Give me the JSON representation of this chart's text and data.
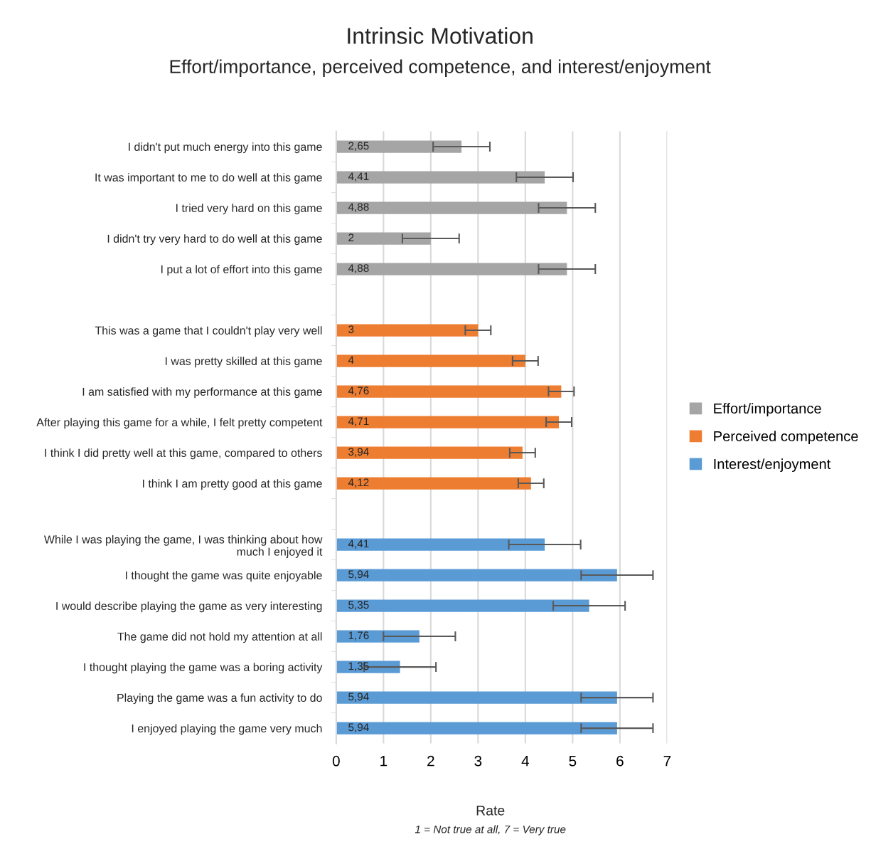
{
  "chart_data": {
    "type": "bar",
    "orientation": "horizontal",
    "title": "Intrinsic Motivation",
    "subtitle": "Effort/importance, perceived competence, and interest/enjoyment",
    "xlabel": "Rate",
    "annotations": [
      "1 = Not true at all, 7 = Very true"
    ],
    "categories": [
      "I didn't put much energy into this game",
      "It was important to me to do well at this game",
      "I tried very hard on this game",
      "I didn't try very hard to do well at this game",
      "I put a lot of effort into this game",
      null,
      "This was a game that I couldn't play very well",
      "I was pretty skilled at this game",
      "I am satisfied with my performance at this game",
      "After playing this game for a while, I felt pretty competent",
      "I think I did pretty well at this game, compared to others",
      "I think I am pretty good at this game",
      null,
      "While I was playing the game, I was thinking about how\nmuch I enjoyed it",
      "I thought the game was quite enjoyable",
      "I would describe playing the game as very interesting",
      "The game did not hold my attention at all",
      "I thought playing the game was a boring activity",
      "Playing the game was a fun activity to do",
      "I enjoyed playing the game very much"
    ],
    "series": [
      {
        "name": "Effort/importance",
        "color": "#a5a5a5",
        "values": [
          2.65,
          4.41,
          4.88,
          2,
          4.88,
          null,
          null,
          null,
          null,
          null,
          null,
          null,
          null,
          null,
          null,
          null,
          null,
          null,
          null,
          null
        ],
        "errors": [
          0.6,
          0.6,
          0.6,
          0.6,
          0.6,
          null,
          null,
          null,
          null,
          null,
          null,
          null,
          null,
          null,
          null,
          null,
          null,
          null,
          null,
          null
        ],
        "value_labels": [
          "2,65",
          "4,41",
          "4,88",
          "2",
          "4,88",
          null,
          null,
          null,
          null,
          null,
          null,
          null,
          null,
          null,
          null,
          null,
          null,
          null,
          null,
          null
        ]
      },
      {
        "name": "Perceived competence",
        "color": "#ed7d31",
        "values": [
          null,
          null,
          null,
          null,
          null,
          null,
          3,
          4,
          4.76,
          4.71,
          3.94,
          4.12,
          null,
          null,
          null,
          null,
          null,
          null,
          null,
          null
        ],
        "errors": [
          null,
          null,
          null,
          null,
          null,
          null,
          0.27,
          0.27,
          0.27,
          0.27,
          0.27,
          0.27,
          null,
          null,
          null,
          null,
          null,
          null,
          null,
          null
        ],
        "value_labels": [
          null,
          null,
          null,
          null,
          null,
          null,
          "3",
          "4",
          "4,76",
          "4,71",
          "3,94",
          "4,12",
          null,
          null,
          null,
          null,
          null,
          null,
          null,
          null
        ]
      },
      {
        "name": "Interest/enjoyment",
        "color": "#5b9bd5",
        "values": [
          null,
          null,
          null,
          null,
          null,
          null,
          null,
          null,
          null,
          null,
          null,
          null,
          null,
          4.41,
          5.94,
          5.35,
          1.76,
          1.35,
          5.94,
          5.94
        ],
        "errors": [
          null,
          null,
          null,
          null,
          null,
          null,
          null,
          null,
          null,
          null,
          null,
          null,
          null,
          0.76,
          0.76,
          0.76,
          0.76,
          0.76,
          0.76,
          0.76
        ],
        "value_labels": [
          null,
          null,
          null,
          null,
          null,
          null,
          null,
          null,
          null,
          null,
          null,
          null,
          null,
          "4,41",
          "5,94",
          "5,35",
          "1,76",
          "1,35",
          "5,94",
          "5,94"
        ]
      }
    ],
    "xlim": [
      0,
      7
    ],
    "xticks": [
      0,
      1,
      2,
      3,
      4,
      5,
      6,
      7
    ],
    "grid": "x",
    "legend": "right"
  }
}
